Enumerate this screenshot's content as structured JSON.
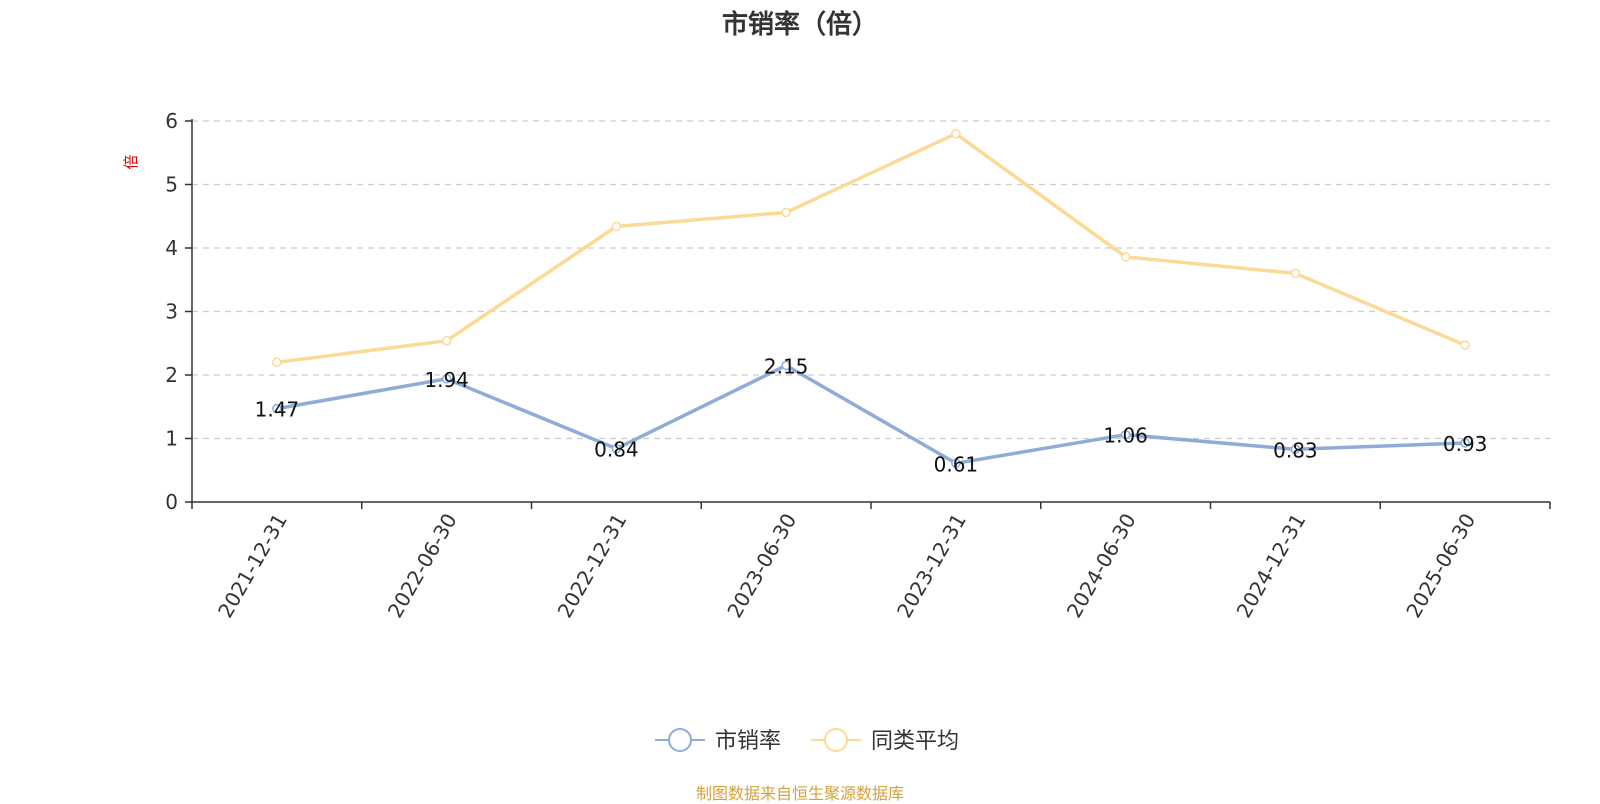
{
  "chart_data": {
    "type": "line",
    "title": "市销率（倍）",
    "ylabel": "倍",
    "xlabel": "",
    "categories": [
      "2021-12-31",
      "2022-06-30",
      "2022-12-31",
      "2023-06-30",
      "2023-12-31",
      "2024-06-30",
      "2024-12-31",
      "2025-06-30"
    ],
    "ylim": [
      0,
      6
    ],
    "yticks": [
      0,
      1,
      2,
      3,
      4,
      5,
      6
    ],
    "grid": true,
    "legend_position": "bottom-center",
    "series": [
      {
        "name": "市销率",
        "values": [
          1.47,
          1.94,
          0.84,
          2.15,
          0.61,
          1.06,
          0.83,
          0.93
        ],
        "color": "#8eacd8",
        "show_labels": true,
        "labels": [
          "1.47",
          "1.94",
          "0.84",
          "2.15",
          "0.61",
          "1.06",
          "0.83",
          "0.93"
        ]
      },
      {
        "name": "同类平均",
        "values": [
          2.2,
          2.54,
          4.34,
          4.56,
          5.8,
          3.86,
          3.6,
          2.47
        ],
        "color": "#fcd995",
        "show_labels": false
      }
    ]
  },
  "footer": {
    "source": "制图数据来自恒生聚源数据库"
  },
  "colors": {
    "axis": "#333333",
    "grid": "#cccccc",
    "ylabel": "#e60000",
    "source": "#d4a23c"
  }
}
